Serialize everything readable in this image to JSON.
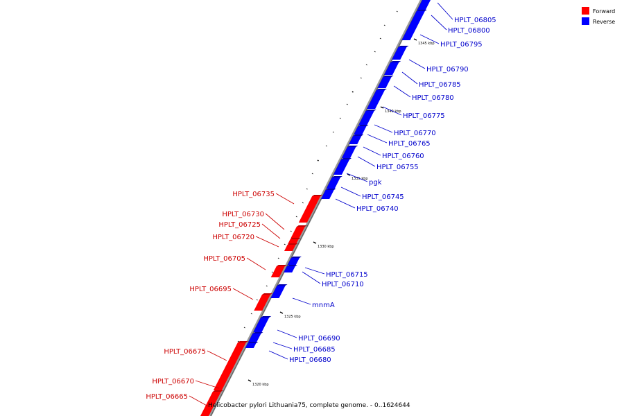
{
  "caption": "Helicobacter pylori Lithuania75, complete genome. - 0..1624644",
  "legend": {
    "forward": {
      "label": "Forward",
      "color": "#ff0000"
    },
    "reverse": {
      "label": "Reverse",
      "color": "#0000ff"
    }
  },
  "ticks": [
    "1345 kbp",
    "1340 kbp",
    "1335 kbp",
    "1330 kbp",
    "1325 kbp",
    "1320 kbp"
  ],
  "genes": {
    "reverse": [
      "HPLT_06805",
      "HPLT_06800",
      "HPLT_06795",
      "HPLT_06790",
      "HPLT_06785",
      "HPLT_06780",
      "HPLT_06775",
      "HPLT_06770",
      "HPLT_06765",
      "HPLT_06760",
      "HPLT_06755",
      "pgk",
      "HPLT_06745",
      "HPLT_06740",
      "HPLT_06715",
      "HPLT_06710",
      "mnmA",
      "HPLT_06690",
      "HPLT_06685",
      "HPLT_06680"
    ],
    "forward": [
      "HPLT_06735",
      "HPLT_06730",
      "HPLT_06725",
      "HPLT_06720",
      "HPLT_06705",
      "HPLT_06695",
      "HPLT_06675",
      "HPLT_06670",
      "HPLT_06665"
    ]
  }
}
